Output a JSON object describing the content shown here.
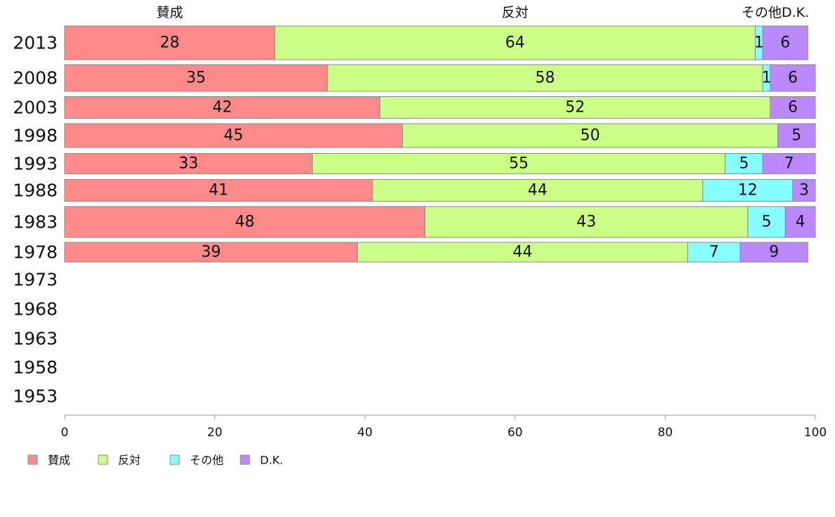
{
  "chart_data": {
    "type": "bar",
    "orientation": "horizontal",
    "stacked": true,
    "categories": [
      "2013",
      "2008",
      "2003",
      "1998",
      "1993",
      "1988",
      "1983",
      "1978",
      "1973",
      "1968",
      "1963",
      "1958",
      "1953"
    ],
    "series": [
      {
        "name": "賛成",
        "color": "#ff8a8a",
        "values": [
          28,
          35,
          42,
          45,
          33,
          41,
          48,
          39,
          null,
          null,
          null,
          null,
          null
        ]
      },
      {
        "name": "反対",
        "color": "#ccff88",
        "values": [
          64,
          58,
          52,
          50,
          55,
          44,
          43,
          44,
          null,
          null,
          null,
          null,
          null
        ]
      },
      {
        "name": "その他",
        "color": "#88ffff",
        "values": [
          1,
          1,
          0,
          0,
          5,
          12,
          5,
          7,
          null,
          null,
          null,
          null,
          null
        ]
      },
      {
        "name": "D.K.",
        "color": "#bb88ff",
        "values": [
          6,
          6,
          6,
          5,
          7,
          3,
          4,
          9,
          null,
          null,
          null,
          null,
          null
        ]
      }
    ],
    "column_headers": [
      "賛成",
      "反対",
      "その他",
      "D.K."
    ],
    "xlim": [
      0,
      100
    ],
    "xticks": [
      0,
      20,
      40,
      60,
      80,
      100
    ],
    "legend_position": "bottom-left",
    "grid": false
  }
}
